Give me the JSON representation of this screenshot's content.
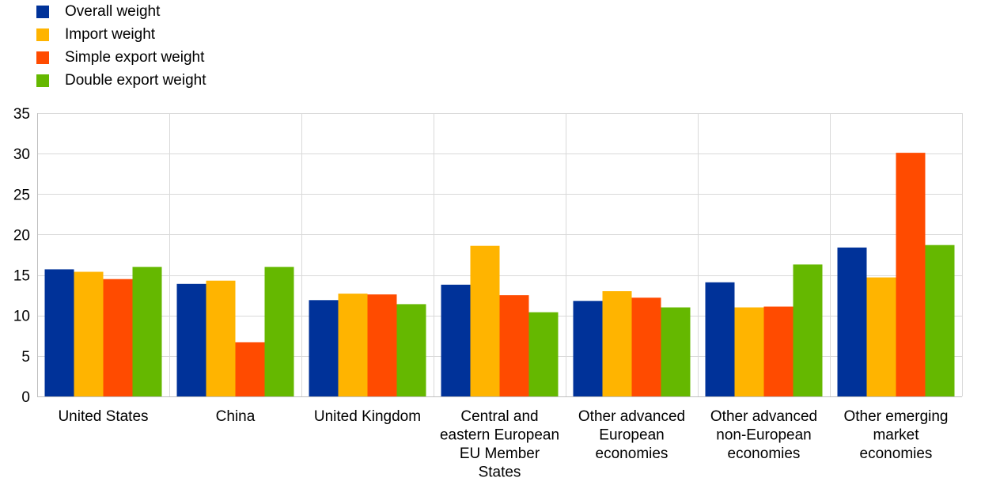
{
  "chart_data": {
    "type": "bar",
    "title": "",
    "xlabel": "",
    "ylabel": "",
    "ylim": [
      0,
      35
    ],
    "yticks": [
      0,
      5,
      10,
      15,
      20,
      25,
      30,
      35
    ],
    "grid": true,
    "legend_position": "top-left",
    "categories": [
      [
        "United States"
      ],
      [
        "China"
      ],
      [
        "United Kingdom"
      ],
      [
        "Central and",
        "eastern European",
        "EU Member",
        "States"
      ],
      [
        "Other advanced",
        "European",
        "economies"
      ],
      [
        "Other advanced",
        "non-European",
        "economies"
      ],
      [
        "Other emerging",
        "market",
        "economies"
      ]
    ],
    "series": [
      {
        "name": "Overall weight",
        "color": "#003299",
        "values": [
          15.7,
          13.9,
          11.9,
          13.8,
          11.8,
          14.1,
          18.4
        ]
      },
      {
        "name": "Import weight",
        "color": "#FFB400",
        "values": [
          15.4,
          14.3,
          12.7,
          18.6,
          13.0,
          11.0,
          14.7
        ]
      },
      {
        "name": "Simple export weight",
        "color": "#FF4B00",
        "values": [
          14.5,
          6.7,
          12.6,
          12.5,
          12.2,
          11.1,
          30.1
        ]
      },
      {
        "name": "Double export weight",
        "color": "#65B800",
        "values": [
          16.0,
          16.0,
          11.4,
          10.4,
          11.0,
          16.3,
          18.7
        ]
      }
    ]
  }
}
